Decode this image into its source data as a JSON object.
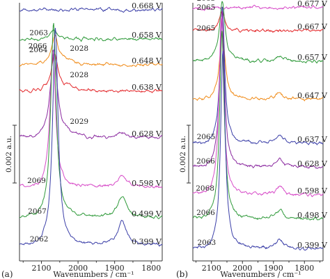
{
  "chart_data": [
    {
      "type": "line",
      "panel_label": "(a)",
      "xlabel": "Wavenumbers / cm⁻¹",
      "ylabel": "",
      "x_reversed": true,
      "xlim": [
        2160,
        1770
      ],
      "xticks": [
        "2100",
        "2000",
        "1900",
        "1800"
      ],
      "scale_bar": "0.002 a.u.",
      "grid": false,
      "series": [
        {
          "label": "0.668 V",
          "color": "#3b3fa8",
          "peak_cm": null,
          "peak_height": 0.0,
          "secondary_label": null,
          "band_1880": 0.0
        },
        {
          "label": "0.658 V",
          "color": "#2f9a3a",
          "peak_cm": null,
          "peak_height": 0.4,
          "secondary_label": null,
          "band_1880": 0.0
        },
        {
          "label": "0.648 V",
          "color": "#f08c1a",
          "peak_cm": "2063",
          "peak_height": 1.2,
          "secondary_label": "2028",
          "band_1880": 0.0
        },
        {
          "label": "0.638 V",
          "color": "#e3282b",
          "peak_cm": "2064",
          "peak_height": 1.6,
          "secondary_label": "2028",
          "band_1880": 0.0
        },
        {
          "label": "0.628 V",
          "color": "#8b2aa0",
          "peak_cm": "2066",
          "peak_height": 3.8,
          "secondary_label": "2029",
          "band_1880": 0.2
        },
        {
          "label": "0.598 V",
          "color": "#d74bc8",
          "peak_cm": "2069",
          "peak_height": 6.0,
          "secondary_label": null,
          "band_1880": 0.5
        },
        {
          "label": "0.499 V",
          "color": "#2f9a3a",
          "peak_cm": "2067",
          "peak_height": 8.5,
          "secondary_label": null,
          "band_1880": 0.9
        },
        {
          "label": "0.399 V",
          "color": "#3b3fa8",
          "peak_cm": "2062",
          "peak_height": 9.5,
          "secondary_label": null,
          "band_1880": 1.1
        }
      ]
    },
    {
      "type": "line",
      "panel_label": "(b)",
      "xlabel": "Wavenumbers / cm⁻¹",
      "ylabel": "",
      "x_reversed": true,
      "xlim": [
        2160,
        1740
      ],
      "xticks": [
        "2100",
        "2000",
        "1900",
        "1800"
      ],
      "scale_bar": "0.002 a.u.",
      "grid": false,
      "series": [
        {
          "label": "0.677 V",
          "color": "#d74bc8",
          "peak_cm": null,
          "peak_height": 0.0,
          "band_1880": 0.0
        },
        {
          "label": "0.667 V",
          "color": "#e3282b",
          "peak_cm": "2065",
          "peak_height": 0.9,
          "band_1880": 0.0
        },
        {
          "label": "0.657 V",
          "color": "#2f9a3a",
          "peak_cm": "2065",
          "peak_height": 2.8,
          "band_1880": 0.2
        },
        {
          "label": "0.647 V",
          "color": "#f08c1a",
          "peak_cm": "2065",
          "peak_height": 3.2,
          "band_1880": 0.3
        },
        {
          "label": "0.637 V",
          "color": "#3b3fa8",
          "peak_cm": "2065",
          "peak_height": 6.5,
          "band_1880": 0.4
        },
        {
          "label": "0.628 V",
          "color": "#8b2aa0",
          "peak_cm": "2066",
          "peak_height": 7.5,
          "band_1880": 0.4
        },
        {
          "label": "0.598 V",
          "color": "#d74bc8",
          "peak_cm": "2068",
          "peak_height": 8.5,
          "band_1880": 0.4
        },
        {
          "label": "0.498 V",
          "color": "#2f9a3a",
          "peak_cm": "2066",
          "peak_height": 9.0,
          "band_1880": 0.4
        },
        {
          "label": "0.399 V",
          "color": "#3b3fa8",
          "peak_cm": "2063",
          "peak_height": 9.5,
          "band_1880": 0.4
        }
      ]
    }
  ]
}
